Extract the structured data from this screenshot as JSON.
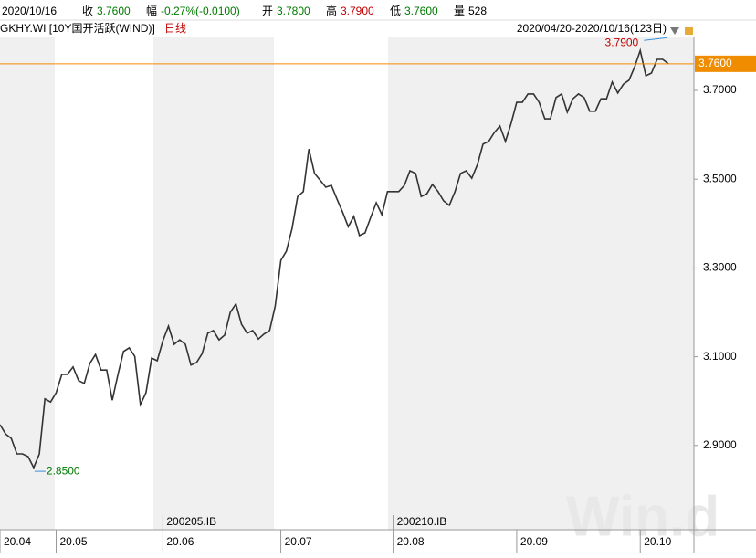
{
  "header": {
    "date": "2020/10/16",
    "close_label": "收",
    "close": "3.7600",
    "change_label": "幅",
    "change": "-0.27%(-0.0100)",
    "open_label": "开",
    "open": "3.7800",
    "high_label": "高",
    "high": "3.7900",
    "low_label": "低",
    "low": "3.7600",
    "volume_label": "量",
    "volume": "528"
  },
  "chart_data": {
    "type": "line",
    "title": "GKHY.WI [10Y国开活跃(WIND)]",
    "period": "日线",
    "range": "2020/04/20-2020/10/16(123日)",
    "series": [
      {
        "name": "GKHY.WI",
        "color": "#333333",
        "values": [
          2.947,
          2.926,
          2.916,
          2.881,
          2.881,
          2.875,
          2.85,
          2.881,
          3.005,
          2.998,
          3.019,
          3.06,
          3.06,
          3.077,
          3.046,
          3.04,
          3.085,
          3.105,
          3.07,
          3.07,
          3.002,
          3.06,
          3.112,
          3.12,
          3.101,
          2.992,
          3.019,
          3.097,
          3.091,
          3.136,
          3.169,
          3.128,
          3.138,
          3.128,
          3.081,
          3.087,
          3.107,
          3.153,
          3.159,
          3.138,
          3.149,
          3.2,
          3.219,
          3.173,
          3.153,
          3.159,
          3.14,
          3.151,
          3.159,
          3.214,
          3.317,
          3.338,
          3.389,
          3.461,
          3.472,
          3.568,
          3.513,
          3.498,
          3.482,
          3.486,
          3.455,
          3.426,
          3.393,
          3.416,
          3.373,
          3.379,
          3.414,
          3.447,
          3.42,
          3.472,
          3.472,
          3.472,
          3.486,
          3.519,
          3.513,
          3.461,
          3.467,
          3.488,
          3.472,
          3.451,
          3.441,
          3.472,
          3.513,
          3.519,
          3.502,
          3.533,
          3.579,
          3.585,
          3.605,
          3.62,
          3.585,
          3.626,
          3.673,
          3.673,
          3.692,
          3.692,
          3.673,
          3.636,
          3.636,
          3.684,
          3.692,
          3.651,
          3.681,
          3.692,
          3.684,
          3.653,
          3.653,
          3.681,
          3.681,
          3.719,
          3.694,
          3.714,
          3.723,
          3.753,
          3.79,
          3.733,
          3.739,
          3.77,
          3.77,
          3.76
        ]
      }
    ],
    "xlim": [
      0,
      119
    ],
    "xticks": [
      {
        "value": 0,
        "label": "20.04"
      },
      {
        "value": 10,
        "label": "20.05"
      },
      {
        "value": 29,
        "label": "20.06"
      },
      {
        "value": 50,
        "label": "20.07"
      },
      {
        "value": 70,
        "label": "20.08"
      },
      {
        "value": 92,
        "label": "20.09"
      },
      {
        "value": 114,
        "label": "20.10"
      }
    ],
    "contracts": [
      {
        "value": 29,
        "label": "200205.IB"
      },
      {
        "value": 70,
        "label": "200210.IB"
      }
    ],
    "ylim": [
      2.7103,
      3.8214
    ],
    "yticks": [
      {
        "value": 2.9,
        "label": "2.9000"
      },
      {
        "value": 3.1,
        "label": "3.1000"
      },
      {
        "value": 3.3,
        "label": "3.3000"
      },
      {
        "value": 3.5,
        "label": "3.5000"
      },
      {
        "value": 3.7,
        "label": "3.7000"
      }
    ],
    "max_marker": {
      "value": 3.79,
      "label": "3.7900",
      "color": "#c00000"
    },
    "min_marker": {
      "value": 2.85,
      "label": "2.8500",
      "color": "#007a00"
    },
    "last": {
      "value": 3.76,
      "label": "3.7600",
      "color": "#f08c00"
    },
    "watermark": "Win.d"
  }
}
